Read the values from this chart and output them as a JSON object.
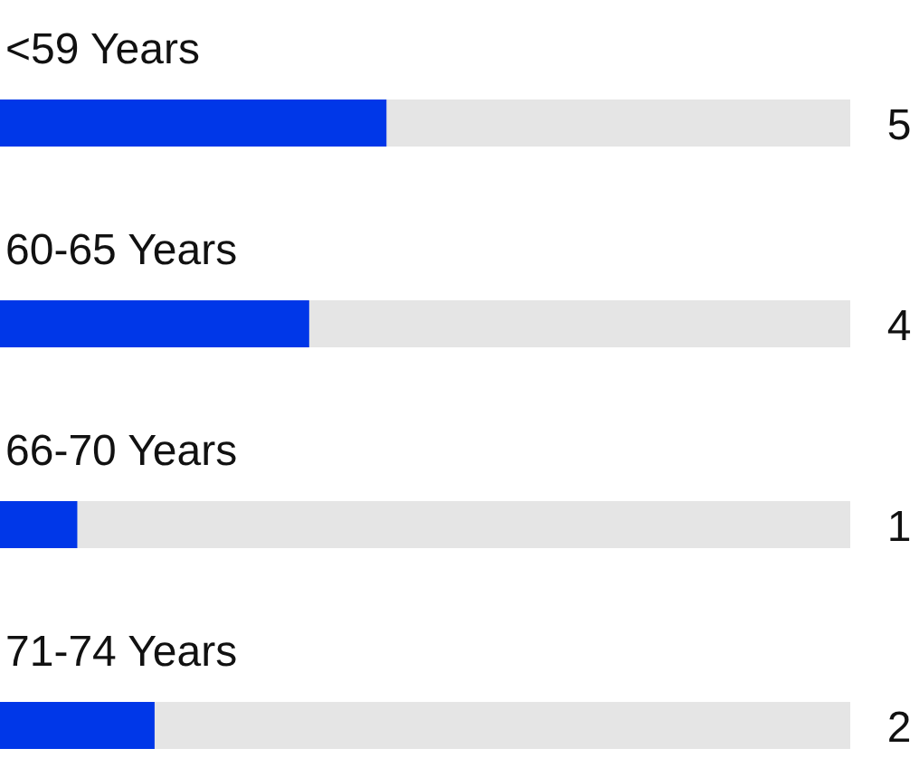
{
  "chart_data": {
    "type": "bar",
    "orientation": "horizontal",
    "categories": [
      "<59 Years",
      "60-65 Years",
      "66-70 Years",
      "71-74 Years"
    ],
    "values": [
      5,
      4,
      1,
      2
    ],
    "color": "#0037e8",
    "xlim": [
      0,
      11
    ],
    "data_labels": true
  }
}
